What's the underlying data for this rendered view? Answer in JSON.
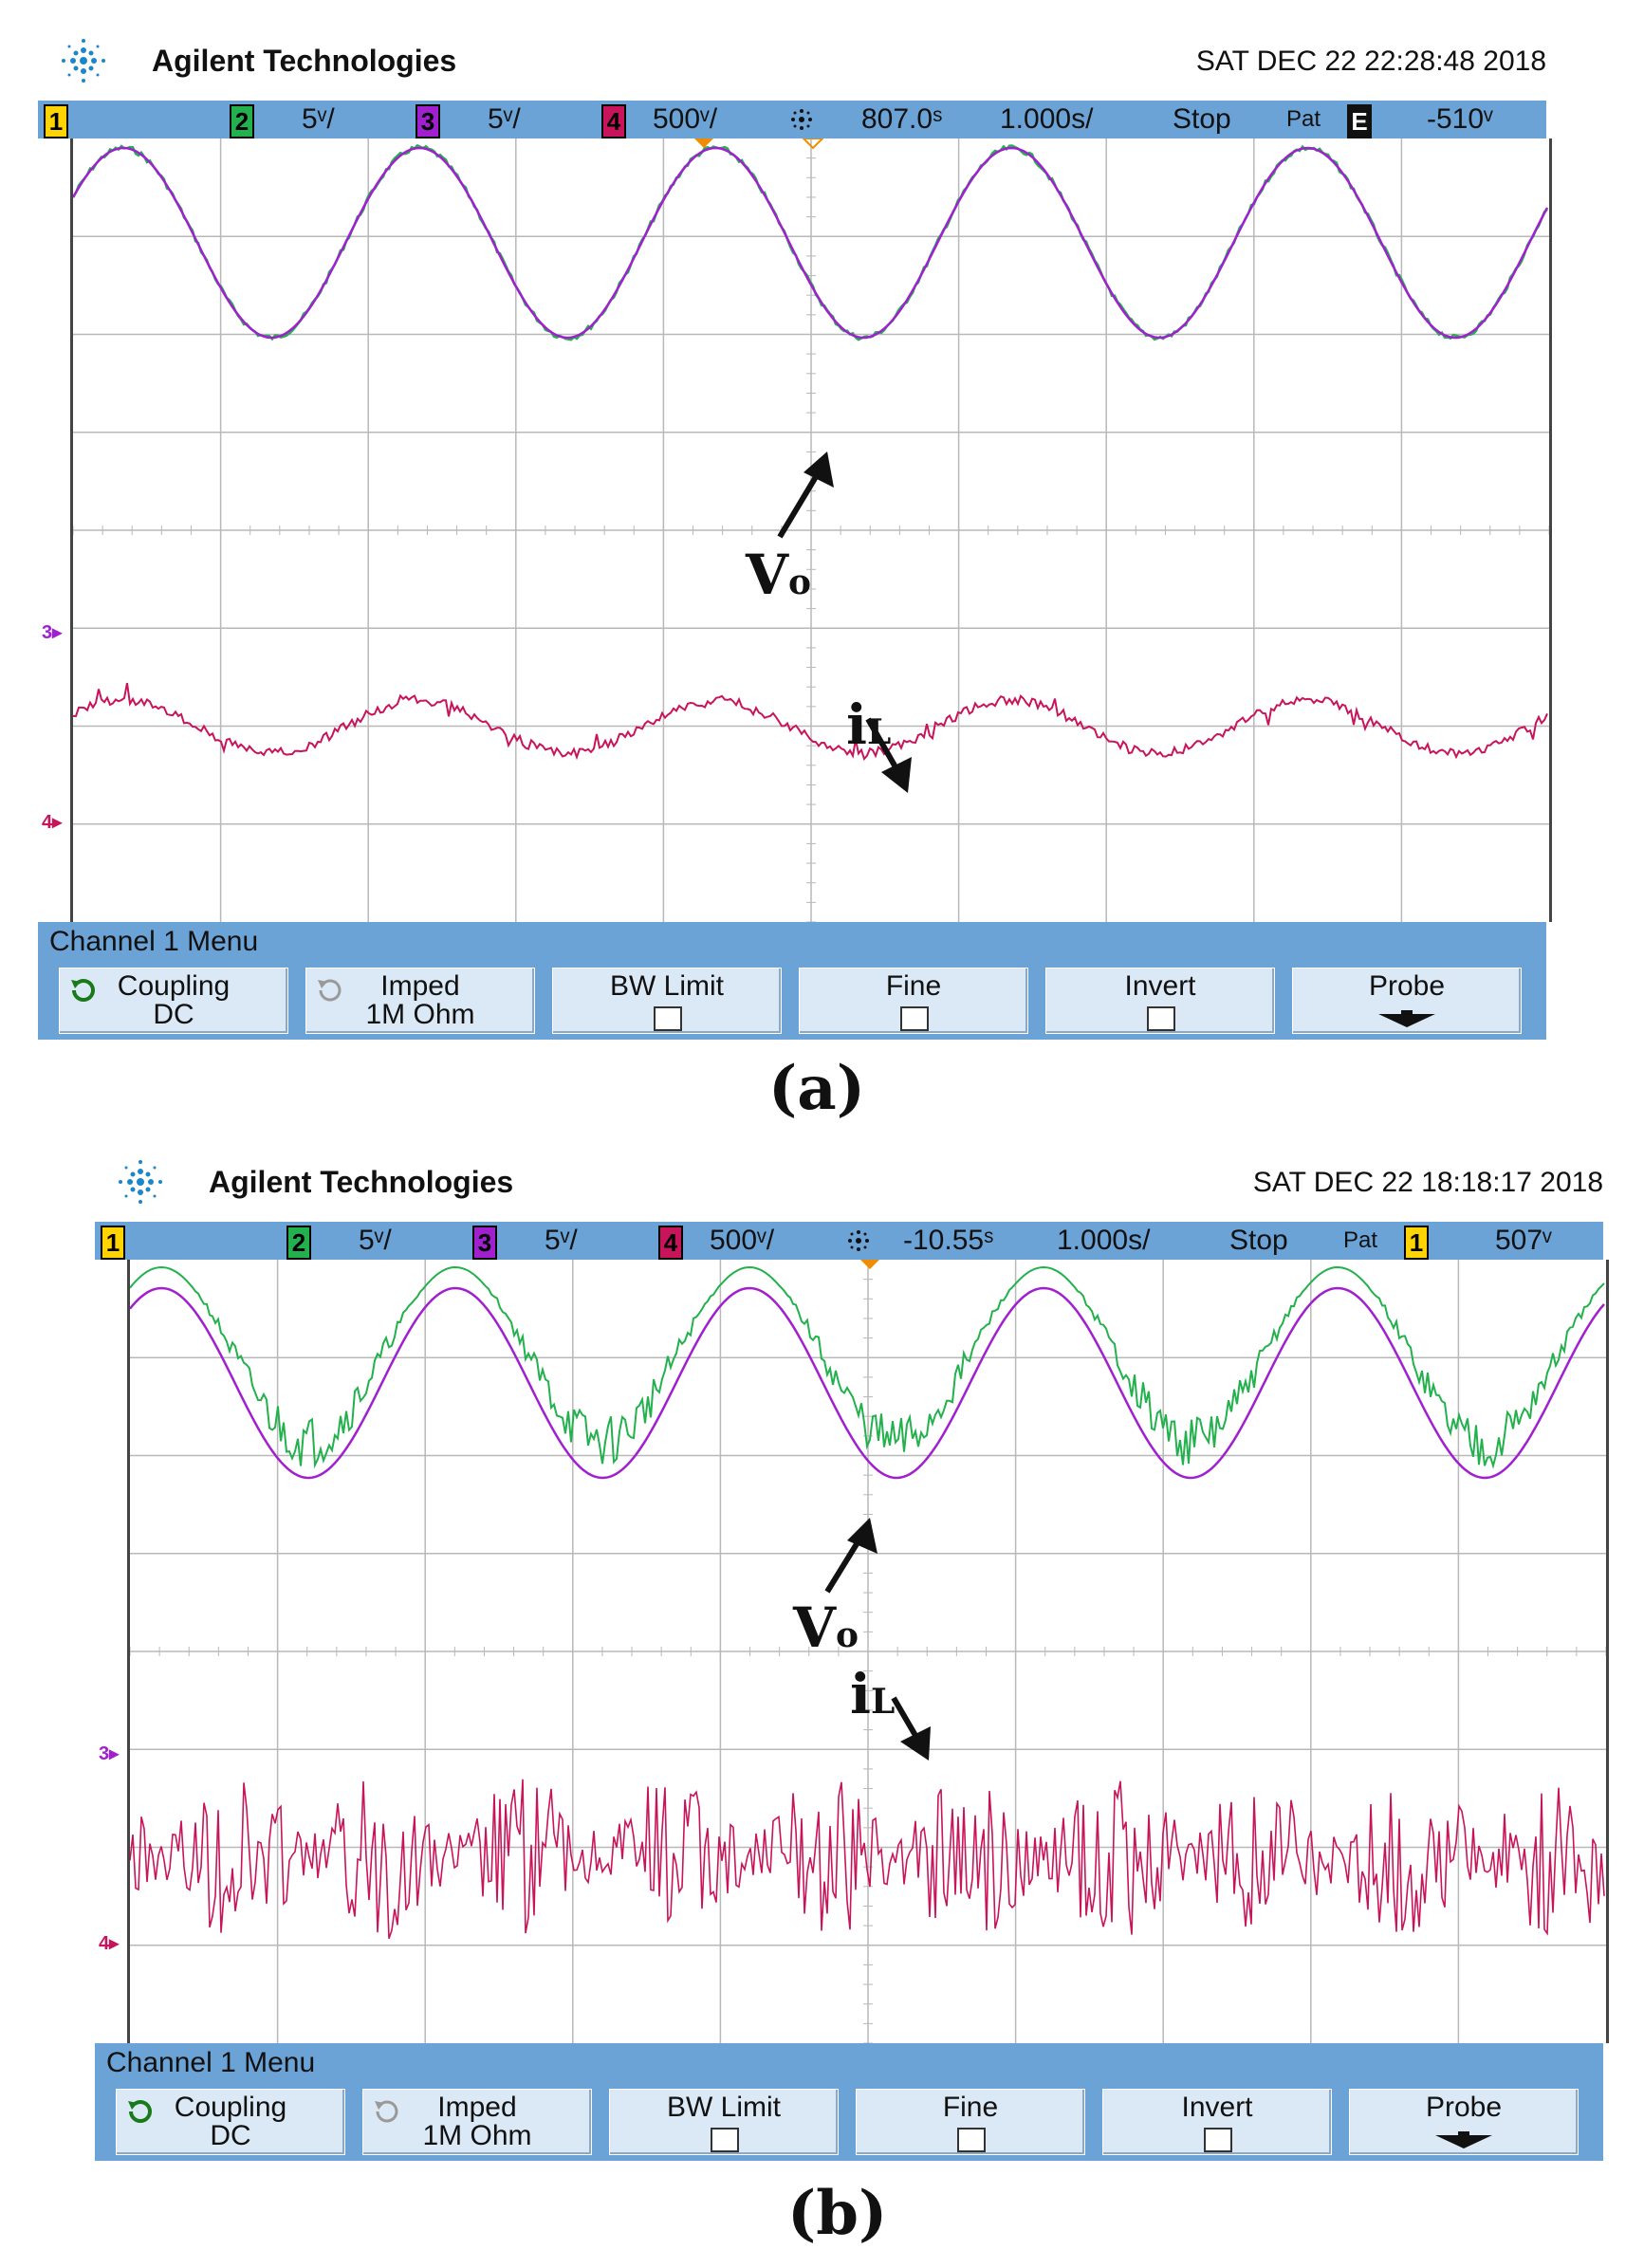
{
  "panels": [
    {
      "brand": "Agilent Technologies",
      "datetime": "SAT DEC 22 22:28:48 2018",
      "status": {
        "ch1": "1",
        "ch2": "2",
        "ch2_scale": "5ᵛ/",
        "ch3": "3",
        "ch3_scale": "5ᵛ/",
        "ch4": "4",
        "ch4_scale": "500ᵛ/",
        "delay": "807.0ˢ",
        "timebase": "1.000s/",
        "run_state": "Stop",
        "trigger_mode": "Pat",
        "trigger_source": "E",
        "trigger_level": "-510ᵛ"
      },
      "markers": {
        "ch3": "3",
        "ch4": "4"
      },
      "menu_title": "Channel 1  Menu",
      "softkeys": {
        "coupling_l1": "Coupling",
        "coupling_l2": "DC",
        "imped_l1": "Imped",
        "imped_l2": "1M Ohm",
        "bw_limit": "BW Limit",
        "fine": "Fine",
        "invert": "Invert",
        "probe": "Probe"
      },
      "annotations": {
        "vo_main": "V",
        "vo_sub": "o",
        "il_main": "i",
        "il_sub": "L"
      },
      "caption": "(a)"
    },
    {
      "brand": "Agilent Technologies",
      "datetime": "SAT DEC 22 18:18:17 2018",
      "status": {
        "ch1": "1",
        "ch2": "2",
        "ch2_scale": "5ᵛ/",
        "ch3": "3",
        "ch3_scale": "5ᵛ/",
        "ch4": "4",
        "ch4_scale": "500ᵛ/",
        "delay": "-10.55ˢ",
        "timebase": "1.000s/",
        "run_state": "Stop",
        "trigger_mode": "Pat",
        "trigger_source": "1",
        "trigger_level": "507ᵛ"
      },
      "markers": {
        "ch3": "3",
        "ch4": "4"
      },
      "menu_title": "Channel 1  Menu",
      "softkeys": {
        "coupling_l1": "Coupling",
        "coupling_l2": "DC",
        "imped_l1": "Imped",
        "imped_l2": "1M Ohm",
        "bw_limit": "BW Limit",
        "fine": "Fine",
        "invert": "Invert",
        "probe": "Probe"
      },
      "annotations": {
        "vo_main": "V",
        "vo_sub": "o",
        "il_main": "i",
        "il_sub": "L"
      },
      "caption": "(b)"
    }
  ],
  "colors": {
    "status_bar": "#6ba3d6",
    "softkey": "#dbe9f7",
    "ch1": "#ffd400",
    "ch2": "#22b14c",
    "ch3": "#a020d0",
    "ch4": "#c8145a",
    "grid": "#b8b8b8"
  },
  "icons": [
    "agilent-logo-icon",
    "coupling-cycle-icon",
    "imped-cycle-icon",
    "probe-down-arrow-icon",
    "trigger-spark-icon"
  ]
}
